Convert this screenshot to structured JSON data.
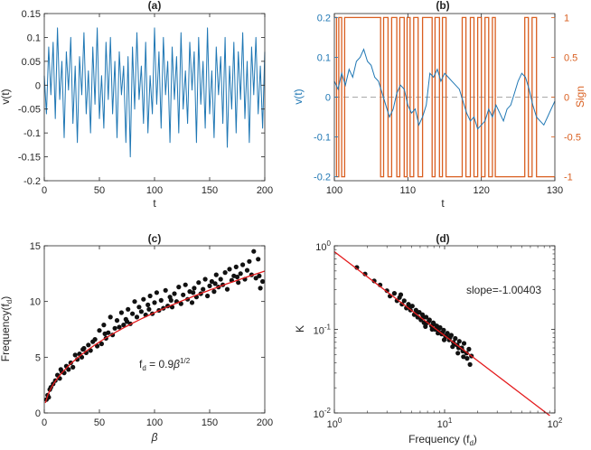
{
  "colors": {
    "blue": "#1f77b4",
    "orange": "#d95f20",
    "black": "#111111",
    "red": "#e41a1c",
    "axis": "#262626",
    "dashed": "#a8a8a8"
  },
  "chart_data": [
    {
      "id": "a",
      "type": "line",
      "title": "(a)",
      "xlabel": "t",
      "ylabel": "v(t)",
      "xlim": [
        0,
        200
      ],
      "ylim": [
        -0.2,
        0.15
      ],
      "xticks": [
        0,
        50,
        100,
        150,
        200
      ],
      "xtick_labels": [
        "0",
        "50",
        "100",
        "150",
        "200"
      ],
      "yticks": [
        -0.2,
        -0.15,
        -0.1,
        -0.05,
        0,
        0.05,
        0.1,
        0.15
      ],
      "ytick_labels": [
        "-0.2",
        "-0.15",
        "-0.1",
        "-0.05",
        "0",
        "0.05",
        "0.1",
        "0.15"
      ],
      "series": [
        {
          "name": "v(t)",
          "color_key": "blue",
          "x": [
            0,
            2,
            4,
            6,
            8,
            10,
            12,
            14,
            16,
            18,
            20,
            22,
            24,
            26,
            28,
            30,
            32,
            34,
            36,
            38,
            40,
            42,
            44,
            46,
            48,
            50,
            52,
            54,
            56,
            58,
            60,
            62,
            64,
            66,
            68,
            70,
            72,
            74,
            76,
            78,
            80,
            82,
            84,
            86,
            88,
            90,
            92,
            94,
            96,
            98,
            100,
            102,
            104,
            106,
            108,
            110,
            112,
            114,
            116,
            118,
            120,
            122,
            124,
            126,
            128,
            130,
            132,
            134,
            136,
            138,
            140,
            142,
            144,
            146,
            148,
            150,
            152,
            154,
            156,
            158,
            160,
            162,
            164,
            166,
            168,
            170,
            172,
            174,
            176,
            178,
            180,
            182,
            184,
            186,
            188,
            190,
            192,
            194,
            196,
            198,
            200
          ],
          "y": [
            0.02,
            -0.06,
            0.08,
            -0.02,
            0.09,
            -0.07,
            0.12,
            -0.03,
            0.05,
            -0.11,
            0.07,
            -0.01,
            0.1,
            -0.08,
            0.04,
            -0.12,
            0.06,
            -0.02,
            0.11,
            -0.06,
            0.03,
            -0.1,
            0.08,
            -0.04,
            0.12,
            -0.07,
            0.02,
            -0.09,
            0.09,
            -0.03,
            0.1,
            -0.06,
            0.05,
            -0.11,
            0.07,
            -0.02,
            0.04,
            -0.12,
            0.06,
            -0.15,
            0.08,
            -0.05,
            0.11,
            -0.03,
            0.04,
            -0.08,
            0.09,
            -0.1,
            0.02,
            -0.06,
            0.12,
            -0.04,
            0.07,
            -0.09,
            0.1,
            -0.02,
            0.05,
            -0.12,
            0.08,
            -0.03,
            0.06,
            -0.1,
            0.11,
            -0.05,
            0.03,
            -0.08,
            0.09,
            -0.01,
            0.07,
            -0.12,
            0.1,
            -0.04,
            0.05,
            -0.09,
            0.12,
            -0.06,
            0.03,
            -0.11,
            0.08,
            -0.02,
            0.06,
            -0.08,
            0.1,
            -0.13,
            0.04,
            -0.05,
            0.09,
            -0.1,
            0.07,
            -0.03,
            0.11,
            -0.07,
            0.05,
            -0.12,
            0.08,
            -0.02,
            0.1,
            -0.06,
            0.04,
            -0.09,
            0.07
          ]
        }
      ]
    },
    {
      "id": "b",
      "type": "line",
      "title": "(b)",
      "xlabel": "t",
      "ylabel": "v(t)",
      "ylabel_right": "Sign",
      "xlim": [
        100,
        130
      ],
      "ylim": [
        -0.21,
        0.21
      ],
      "ylim_right": [
        -1.05,
        1.05
      ],
      "xticks": [
        100,
        110,
        120,
        130
      ],
      "xtick_labels": [
        "100",
        "110",
        "120",
        "130"
      ],
      "yticks": [
        -0.2,
        -0.1,
        0,
        0.1,
        0.2
      ],
      "ytick_labels": [
        "-0.2",
        "-0.1",
        "0",
        "0.1",
        "0.2"
      ],
      "yticks_right": [
        -1,
        -0.5,
        0,
        0.5,
        1
      ],
      "ytick_labels_right": [
        "-1",
        "-0.5",
        "0",
        "0.5",
        "1"
      ],
      "reference_line": {
        "y": 0,
        "style": "dashed"
      },
      "series": [
        {
          "name": "Sign",
          "axis": "right",
          "color_key": "orange",
          "x": [
            100,
            100.3,
            100.3,
            100.6,
            100.6,
            101,
            101,
            101.4,
            101.4,
            106.3,
            106.3,
            106.7,
            106.7,
            107.3,
            107.3,
            107.8,
            107.8,
            108.5,
            108.5,
            108.9,
            108.9,
            109.5,
            109.5,
            109.9,
            109.9,
            110.3,
            110.3,
            110.8,
            110.8,
            111.4,
            111.4,
            112,
            112,
            113.3,
            113.3,
            113.7,
            113.7,
            114.3,
            114.3,
            114.7,
            114.7,
            115.2,
            115.2,
            117.4,
            117.4,
            117.9,
            117.9,
            118.5,
            118.5,
            119,
            119,
            119.5,
            119.5,
            120,
            120,
            120.5,
            120.5,
            121,
            121,
            121.5,
            121.5,
            121.9,
            121.9,
            125.9,
            125.9,
            126.4,
            126.4,
            126.9,
            126.9,
            127.5,
            127.5,
            130
          ],
          "y": [
            1,
            1,
            -1,
            -1,
            1,
            1,
            -1,
            -1,
            1,
            1,
            -1,
            -1,
            1,
            1,
            -1,
            -1,
            1,
            1,
            -1,
            -1,
            1,
            1,
            -1,
            -1,
            1,
            1,
            -1,
            -1,
            1,
            1,
            -1,
            -1,
            1,
            1,
            -1,
            -1,
            1,
            1,
            -1,
            -1,
            1,
            1,
            -1,
            -1,
            1,
            1,
            -1,
            -1,
            1,
            1,
            -1,
            -1,
            1,
            1,
            -1,
            -1,
            1,
            1,
            -1,
            -1,
            1,
            1,
            -1,
            -1,
            1,
            1,
            -1,
            -1,
            1,
            1,
            -1,
            -1
          ]
        },
        {
          "name": "v(t)",
          "axis": "left",
          "color_key": "blue",
          "x": [
            100,
            100.5,
            101,
            101.5,
            102,
            102.5,
            103,
            103.5,
            104,
            104.5,
            105,
            105.5,
            106,
            106.5,
            107,
            107.5,
            108,
            108.5,
            109,
            109.5,
            110,
            110.5,
            111,
            111.5,
            112,
            112.5,
            113,
            113.5,
            114,
            114.5,
            115,
            115.5,
            116,
            116.5,
            117,
            117.5,
            118,
            118.5,
            119,
            119.5,
            120,
            120.5,
            121,
            121.5,
            122,
            122.5,
            123,
            123.5,
            124,
            124.5,
            125,
            125.5,
            126,
            126.5,
            127,
            127.5,
            128,
            128.5,
            129,
            129.5,
            130
          ],
          "y": [
            0.04,
            0.02,
            0.06,
            0.03,
            0.07,
            0.05,
            0.09,
            0.1,
            0.12,
            0.09,
            0.08,
            0.05,
            0.04,
            0.01,
            -0.02,
            -0.05,
            -0.03,
            0.01,
            0.03,
            0.02,
            -0.02,
            -0.04,
            -0.03,
            -0.07,
            -0.05,
            -0.02,
            0.06,
            0.05,
            0.07,
            0.04,
            0.06,
            0.05,
            0.04,
            0.03,
            0.02,
            -0.01,
            -0.04,
            -0.06,
            -0.05,
            -0.08,
            -0.07,
            -0.06,
            -0.03,
            -0.05,
            -0.02,
            -0.04,
            -0.06,
            -0.03,
            -0.02,
            0.01,
            0.04,
            0.06,
            0.05,
            0.02,
            -0.02,
            -0.05,
            -0.06,
            -0.07,
            -0.05,
            -0.03,
            -0.01
          ]
        }
      ]
    },
    {
      "id": "c",
      "type": "scatter",
      "title": "(c)",
      "xlabel": "β",
      "ylabel": "Frequency(f",
      "ylabel_sub": "d",
      "ylabel_tail": ")",
      "xlim": [
        0,
        200
      ],
      "ylim": [
        0,
        15
      ],
      "xticks": [
        0,
        50,
        100,
        150,
        200
      ],
      "xtick_labels": [
        "0",
        "50",
        "100",
        "150",
        "200"
      ],
      "yticks": [
        0,
        5,
        10,
        15
      ],
      "ytick_labels": [
        "0",
        "5",
        "10",
        "15"
      ],
      "annotation": {
        "base": "f",
        "sub": "d",
        "mid": " = 0.9",
        "sym": "β",
        "sup": "1/2"
      },
      "fit": {
        "label": "f_d = 0.9 β^(1/2)",
        "coef": 0.9,
        "exponent": 0.5,
        "x_range": [
          1,
          200
        ]
      },
      "series": [
        {
          "name": "data",
          "color_key": "black",
          "x": [
            2,
            3,
            4,
            5,
            6,
            8,
            10,
            12,
            14,
            16,
            18,
            20,
            22,
            24,
            26,
            28,
            30,
            32,
            34,
            36,
            38,
            40,
            42,
            44,
            46,
            48,
            50,
            52,
            54,
            56,
            58,
            60,
            62,
            64,
            66,
            68,
            70,
            72,
            74,
            76,
            78,
            80,
            82,
            84,
            86,
            88,
            90,
            92,
            94,
            96,
            98,
            100,
            102,
            104,
            106,
            108,
            110,
            112,
            114,
            116,
            118,
            120,
            122,
            124,
            126,
            128,
            130,
            132,
            134,
            136,
            138,
            140,
            142,
            144,
            146,
            148,
            150,
            152,
            154,
            156,
            158,
            160,
            162,
            164,
            166,
            168,
            170,
            172,
            174,
            176,
            178,
            180,
            182,
            184,
            186,
            188,
            190,
            192,
            194,
            196,
            198,
            15,
            35,
            55,
            75,
            95,
            115,
            135,
            155,
            175,
            195
          ],
          "y": [
            1.2,
            1.6,
            1.4,
            2.1,
            2.3,
            2.6,
            2.9,
            3.4,
            3.1,
            3.7,
            3.6,
            4.2,
            3.9,
            4.5,
            4.1,
            5.2,
            4.8,
            5.3,
            5.0,
            5.8,
            5.4,
            6.1,
            5.6,
            6.4,
            6.6,
            6.0,
            7.4,
            6.2,
            7.9,
            6.7,
            7.2,
            8.6,
            7.0,
            7.6,
            8.3,
            7.7,
            9.0,
            7.9,
            8.4,
            9.3,
            8.0,
            8.9,
            10.0,
            8.6,
            9.5,
            9.1,
            10.2,
            8.8,
            9.7,
            10.5,
            8.9,
            9.9,
            10.8,
            9.2,
            10.1,
            9.4,
            11.0,
            9.6,
            10.4,
            9.5,
            10.7,
            10.0,
            11.3,
            9.8,
            10.6,
            11.5,
            10.2,
            10.9,
            9.9,
            11.2,
            10.4,
            11.7,
            10.7,
            11.1,
            12.0,
            10.5,
            11.4,
            11.8,
            10.9,
            12.4,
            11.3,
            12.0,
            11.5,
            12.6,
            11.1,
            12.9,
            11.9,
            12.3,
            13.1,
            11.7,
            12.5,
            13.3,
            12.0,
            12.8,
            13.6,
            12.4,
            14.5,
            12.1,
            13.8,
            11.2,
            11.8,
            3.9,
            5.7,
            7.1,
            8.2,
            9.3,
            10.1,
            10.8,
            11.6,
            12.2,
            12.3
          ]
        }
      ]
    },
    {
      "id": "d",
      "type": "scatter",
      "scale": "log-log",
      "title": "(d)",
      "xlabel": "Frequency (f",
      "xlabel_sub": "d",
      "xlabel_tail": ")",
      "ylabel": "K",
      "xlim": [
        1,
        100
      ],
      "ylim": [
        0.01,
        1
      ],
      "xticks": [
        1,
        10,
        100
      ],
      "xtick_labels": [
        {
          "base": "10",
          "exp": "0"
        },
        {
          "base": "10",
          "exp": "1"
        },
        {
          "base": "10",
          "exp": "2"
        }
      ],
      "yticks": [
        0.01,
        0.1,
        1
      ],
      "ytick_labels": [
        {
          "base": "10",
          "exp": "-2"
        },
        {
          "base": "10",
          "exp": "-1"
        },
        {
          "base": "10",
          "exp": "0"
        }
      ],
      "annotation": "slope=-1.00403",
      "fit": {
        "slope": -1.00403,
        "intercept_at_1": 0.85,
        "x_range": [
          1,
          90
        ]
      },
      "series": [
        {
          "name": "data",
          "color_key": "black",
          "x": [
            1.6,
            1.9,
            2.3,
            2.6,
            3.0,
            3.2,
            3.5,
            3.7,
            3.9,
            4.1,
            4.3,
            4.5,
            4.7,
            4.9,
            5.1,
            5.3,
            5.5,
            5.7,
            5.9,
            6.1,
            6.3,
            6.5,
            6.8,
            7.0,
            7.3,
            7.6,
            7.9,
            8.2,
            8.5,
            8.8,
            9.1,
            9.4,
            9.8,
            10.2,
            10.6,
            11.0,
            11.5,
            12.0,
            12.5,
            13.0,
            13.6,
            14.3,
            15.0,
            15.8,
            16.6,
            17.5,
            4.0,
            4.8,
            5.6,
            6.4,
            7.2,
            8.0,
            8.8,
            9.6,
            10.4,
            11.2,
            12.2,
            13.4,
            14.6,
            16.0,
            17.0,
            6.7,
            7.7,
            8.7,
            9.9,
            11.8,
            13.2,
            14.8
          ],
          "y": [
            0.55,
            0.46,
            0.38,
            0.34,
            0.29,
            0.25,
            0.27,
            0.22,
            0.24,
            0.2,
            0.22,
            0.18,
            0.2,
            0.17,
            0.19,
            0.15,
            0.17,
            0.14,
            0.16,
            0.13,
            0.15,
            0.12,
            0.14,
            0.12,
            0.13,
            0.11,
            0.12,
            0.1,
            0.11,
            0.095,
            0.105,
            0.088,
            0.098,
            0.082,
            0.09,
            0.075,
            0.085,
            0.07,
            0.078,
            0.065,
            0.072,
            0.06,
            0.068,
            0.052,
            0.058,
            0.048,
            0.26,
            0.19,
            0.16,
            0.14,
            0.125,
            0.115,
            0.1,
            0.092,
            0.085,
            0.08,
            0.066,
            0.06,
            0.055,
            0.045,
            0.038,
            0.108,
            0.1,
            0.09,
            0.075,
            0.062,
            0.052,
            0.047
          ]
        }
      ]
    }
  ]
}
